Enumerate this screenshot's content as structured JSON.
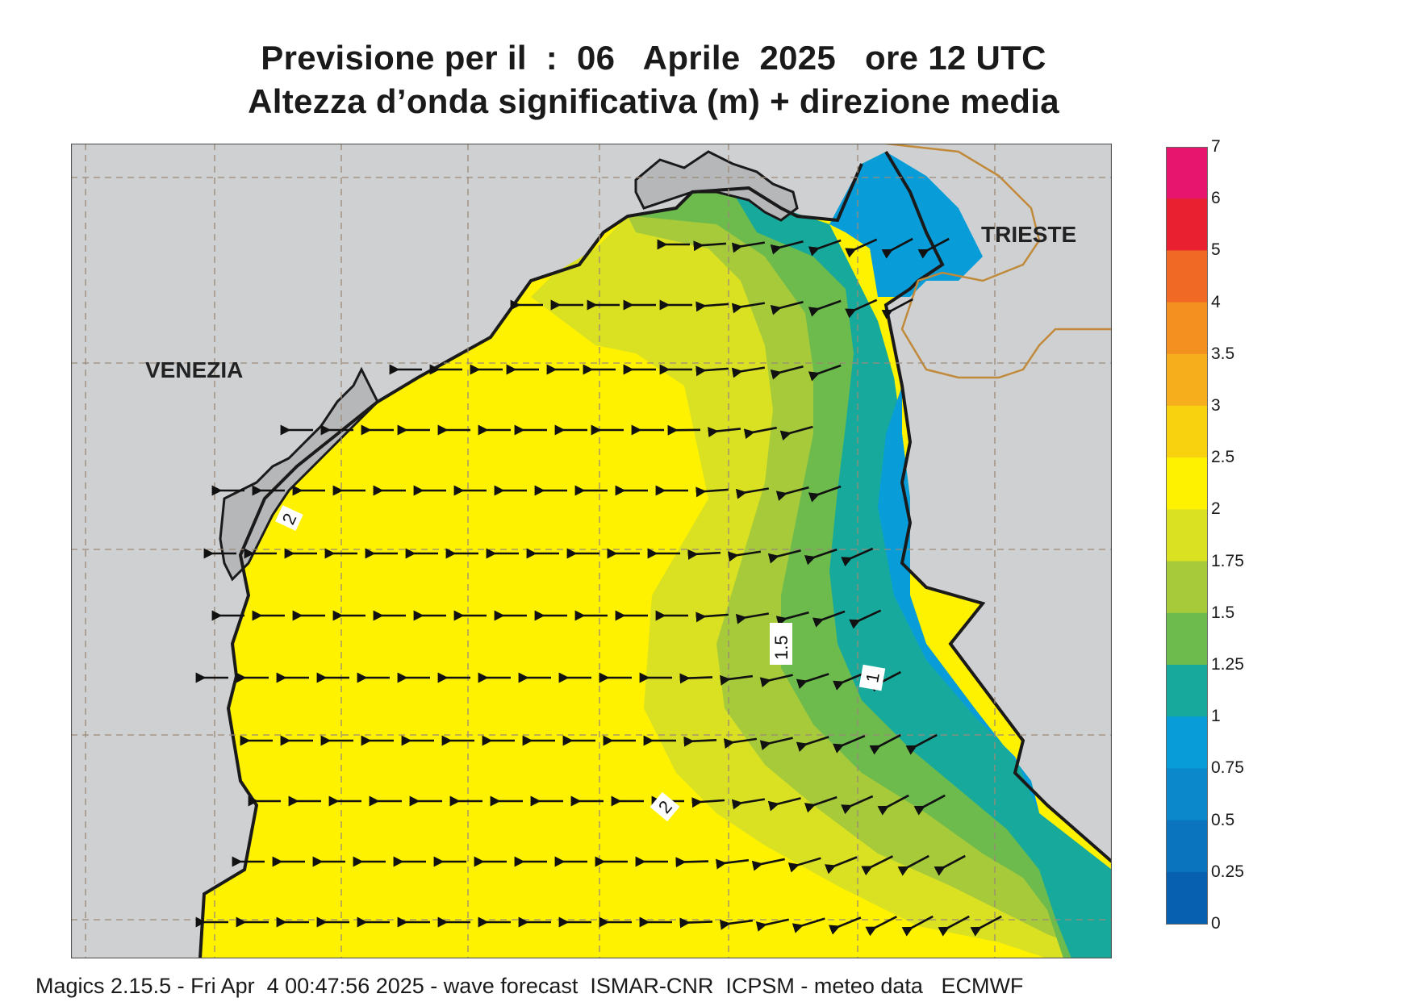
{
  "title": {
    "line1": "Previsione per il  :  06   Aprile  2025   ore 12 UTC",
    "line2": "Altezza d’onda significativa (m) + direzione media"
  },
  "cities": {
    "venezia": "VENEZIA",
    "trieste": "TRIESTE"
  },
  "contour_labels": {
    "two_left": "2",
    "one_five": "1.5",
    "one": "1",
    "two_bottom": "2"
  },
  "legend": {
    "labels": [
      "7",
      "6",
      "5",
      "4",
      "3.5",
      "3",
      "2.5",
      "2",
      "1.75",
      "1.5",
      "1.25",
      "1",
      "0.75",
      "0.5",
      "0.25",
      "0"
    ],
    "colors": [
      "#e8156e",
      "#e82030",
      "#f06a26",
      "#f3901f",
      "#f6ae1d",
      "#f8d20e",
      "#fff200",
      "#d9e122",
      "#a6ca3a",
      "#6dbb4d",
      "#17aa9c",
      "#089dd9",
      "#0b87cc",
      "#0a74be",
      "#0860b0"
    ]
  },
  "colors": {
    "land": "#cfd0d2",
    "coast": "#1a1a1a",
    "border": "#c08a3a",
    "grid": "#9a8a78"
  },
  "footer": "Magics 2.15.5 - Fri Apr  4 00:47:56 2025 - wave forecast  ISMAR-CNR  ICPSM - meteo data   ECMWF"
}
